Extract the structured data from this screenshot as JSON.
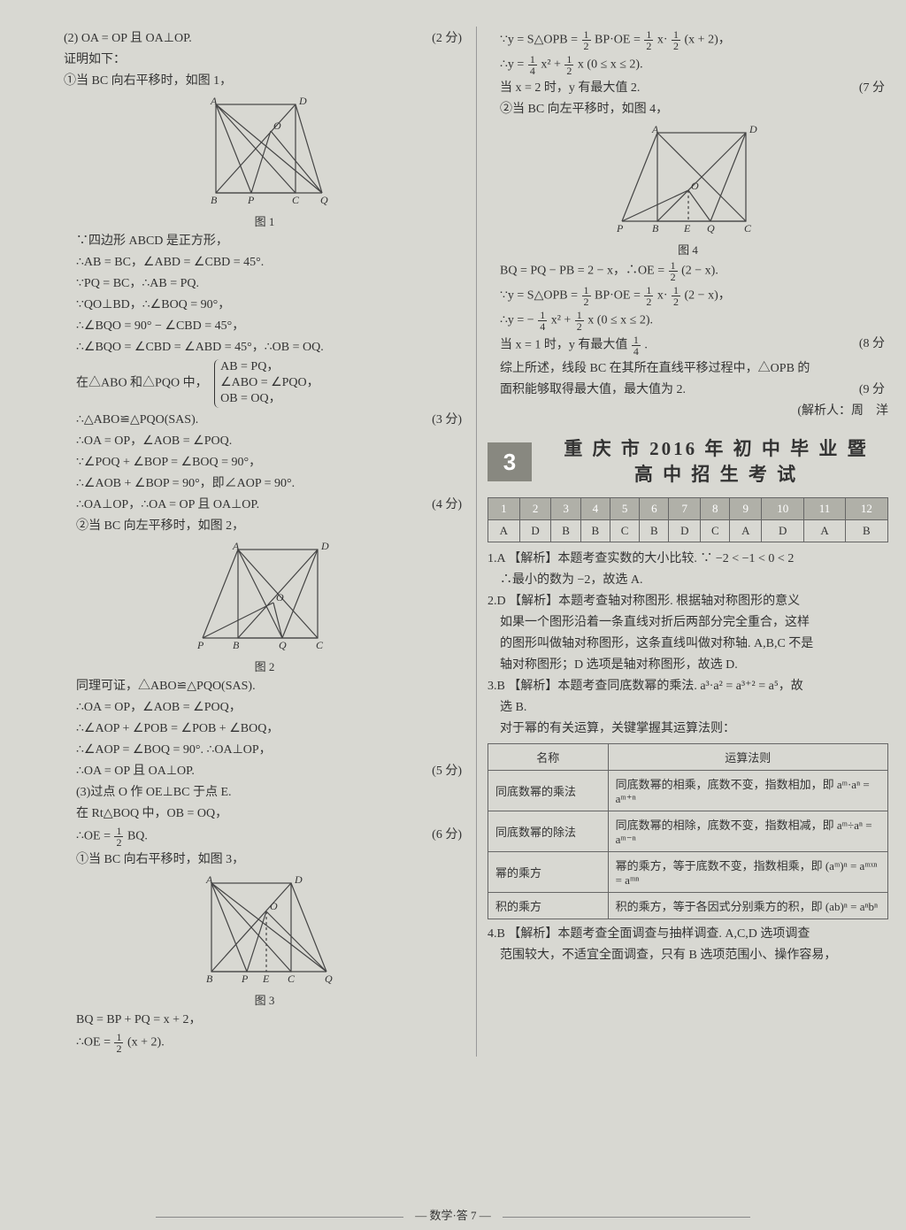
{
  "left": {
    "l1": "(2) OA = OP 且 OA⊥OP.",
    "s1": "(2 分)",
    "l2": "证明如下：",
    "l3": "①当 BC 向右平移时，如图 1，",
    "fig1": "图 1",
    "l4": "∵四边形 ABCD 是正方形，",
    "l5": "∴AB = BC，∠ABD = ∠CBD = 45°.",
    "l6": "∵PQ = BC，∴AB = PQ.",
    "l7": "∵QO⊥BD，∴∠BOQ = 90°，",
    "l8": "∴∠BQO = 90° − ∠CBD = 45°，",
    "l9": "∴∠BQO = ∠CBD = ∠ABD = 45°，∴OB = OQ.",
    "l10a": "在△ABO 和△PQO 中，",
    "l10b1": "AB = PQ，",
    "l10b2": "∠ABO = ∠PQO，",
    "l10b3": "OB = OQ，",
    "l11": "∴△ABO≌△PQO(SAS).",
    "s2": "(3 分)",
    "l12": "∴OA = OP，∠AOB = ∠POQ.",
    "l13": "∵∠POQ + ∠BOP = ∠BOQ = 90°，",
    "l14": "∴∠AOB + ∠BOP = 90°，即∠AOP = 90°.",
    "l15": "∴OA⊥OP，∴OA = OP 且 OA⊥OP.",
    "s3": "(4 分)",
    "l16": "②当 BC 向左平移时，如图 2，",
    "fig2": "图 2",
    "l17": "同理可证，△ABO≌△PQO(SAS).",
    "l18": "∴OA = OP，∠AOB = ∠POQ，",
    "l19": "∴∠AOP + ∠POB = ∠POB + ∠BOQ，",
    "l20": "∴∠AOP = ∠BOQ = 90°. ∴OA⊥OP，",
    "l21": "∴OA = OP 且 OA⊥OP.",
    "s4": "(5 分)",
    "l22": "(3)过点 O 作 OE⊥BC 于点 E.",
    "l23": "在 Rt△BOQ 中，OB = OQ，",
    "l24a": "∴OE = ",
    "l24b": " BQ.",
    "s5": "(6 分)",
    "l25": "①当 BC 向右平移时，如图 3，",
    "fig3": "图 3",
    "l26": "BQ = BP + PQ = x + 2，",
    "l27a": "∴OE = ",
    "l27b": "(x + 2)."
  },
  "right": {
    "r1a": "∵y = S△OPB = ",
    "r1b": " BP·OE = ",
    "r1c": " x·",
    "r1d": "(x + 2)，",
    "r2a": "∴y = ",
    "r2b": " x² + ",
    "r2c": " x (0 ≤ x ≤ 2).",
    "r3": "当 x = 2 时，y 有最大值 2.",
    "s6": "(7 分",
    "r4": "②当 BC 向左平移时，如图 4，",
    "fig4": "图 4",
    "r5a": "BQ = PQ − PB = 2 − x，∴OE = ",
    "r5b": "(2 − x).",
    "r6a": "∵y = S△OPB = ",
    "r6b": " BP·OE = ",
    "r6c": " x·",
    "r6d": "(2 − x)，",
    "r7a": "∴y = − ",
    "r7b": " x² + ",
    "r7c": " x (0 ≤ x ≤ 2).",
    "r8a": "当 x = 1 时，y 有最大值 ",
    "r8b": ".",
    "s7": "(8 分",
    "r9": "综上所述，线段 BC 在其所在直线平移过程中，△OPB 的",
    "r10": "面积能够取得最大值，最大值为 2.",
    "s8": "(9 分",
    "r11": "(解析人：周　洋",
    "badge": "3",
    "title1": "重 庆 市 2016 年 初 中 毕 业 暨",
    "title2": "高 中 招 生 考 试",
    "ans_nums": [
      "1",
      "2",
      "3",
      "4",
      "5",
      "6",
      "7",
      "8",
      "9",
      "10",
      "11",
      "12"
    ],
    "ans_vals": [
      "A",
      "D",
      "B",
      "B",
      "C",
      "B",
      "D",
      "C",
      "A",
      "D",
      "A",
      "B"
    ],
    "a1": "1.A 【解析】本题考查实数的大小比较. ∵ −2 < −1 < 0 < 2",
    "a1b": "∴最小的数为 −2，故选 A.",
    "a2": "2.D 【解析】本题考查轴对称图形. 根据轴对称图形的意义",
    "a2b": "如果一个图形沿着一条直线对折后两部分完全重合，这样",
    "a2c": "的图形叫做轴对称图形，这条直线叫做对称轴. A,B,C 不是",
    "a2d": "轴对称图形；D 选项是轴对称图形，故选 D.",
    "a3": "3.B 【解析】本题考查同底数幂的乘法. a³·a² = a³⁺² = a⁵，故",
    "a3b": "选 B.",
    "a3c": "对于幂的有关运算，关键掌握其运算法则：",
    "th1": "名称",
    "th2": "运算法则",
    "row1a": "同底数幂的乘法",
    "row1b": "同底数幂的相乘，底数不变，指数相加，即 aᵐ·aⁿ = aᵐ⁺ⁿ",
    "row2a": "同底数幂的除法",
    "row2b": "同底数幂的相除，底数不变，指数相减，即 aᵐ÷aⁿ = aᵐ⁻ⁿ",
    "row3a": "幂的乘方",
    "row3b": "幂的乘方，等于底数不变，指数相乘，即 (aᵐ)ⁿ = aᵐˣⁿ = aᵐⁿ",
    "row4a": "积的乘方",
    "row4b": "积的乘方，等于各因式分别乘方的积，即 (ab)ⁿ = aⁿbⁿ",
    "a4": "4.B 【解析】本题考查全面调查与抽样调查. A,C,D 选项调查",
    "a4b": "范围较大，不适宜全面调查，只有 B 选项范围小、操作容易，"
  },
  "footer": "数学·答 7",
  "colors": {
    "bg": "#d8d8d2",
    "text": "#333333",
    "badge_bg": "#888880",
    "th_bg": "#b0b0a8",
    "border": "#666666"
  },
  "svg": {
    "stroke": "#444",
    "stroke_width": 1.2,
    "font_size": 12
  }
}
